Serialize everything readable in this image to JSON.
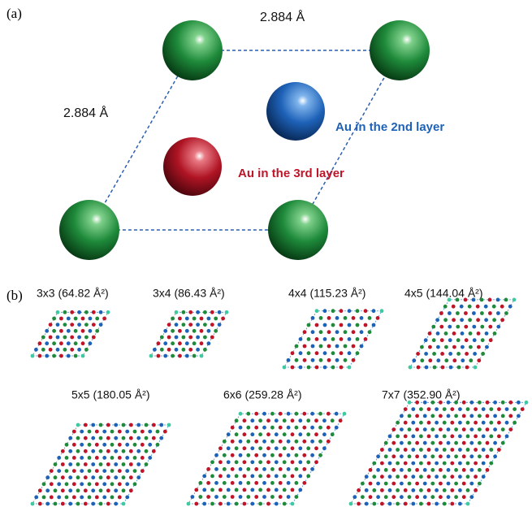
{
  "panel_a": {
    "label": "(a)",
    "top_length": "2.884 Å",
    "side_length": "2.884 Å",
    "blue_label": "Au in the 2nd layer",
    "red_label": "Au in the 3rd layer"
  },
  "panel_b": {
    "label": "(b)",
    "cells": [
      "3x3 (64.82 Å²)",
      "3x4 (86.43 Å²)",
      "4x4 (115.23 Å²)",
      "4x5 (144.04 Å²)",
      "5x5 (180.05 Å²)",
      "6x6 (259.28 Å²)",
      "7x7 (352.90 Å²)"
    ]
  }
}
